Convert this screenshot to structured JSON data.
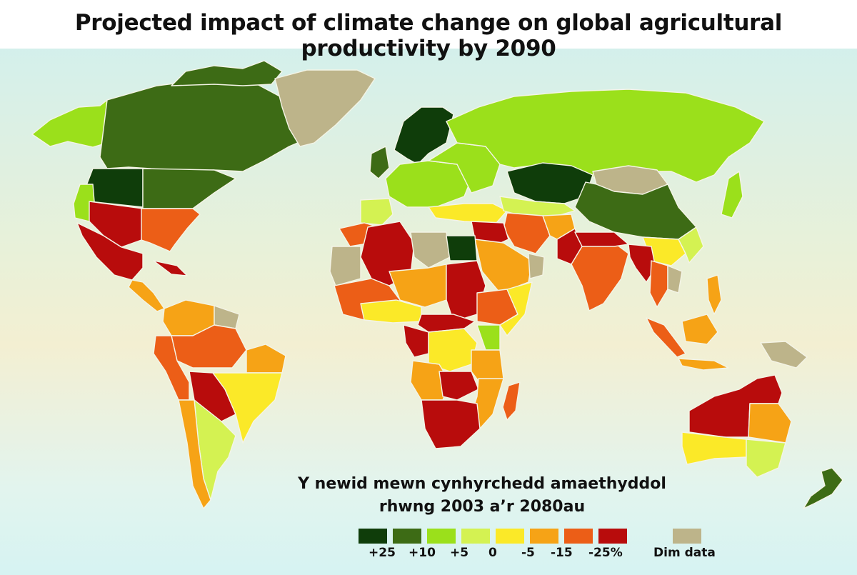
{
  "title": "Projected impact of climate change on global agricultural productivity by 2090",
  "legend": {
    "title_line1": "Y newid mewn cynhyrchedd amaethyddol",
    "title_line2": "rhwng 2003 a’r 2080au",
    "items": [
      {
        "label": "+25",
        "color": "#0f3d0a"
      },
      {
        "label": "+10",
        "color": "#3d6b15"
      },
      {
        "label": "+5",
        "color": "#9be01b"
      },
      {
        "label": "0",
        "color": "#d4f252"
      },
      {
        "label": "-5",
        "color": "#fbe928"
      },
      {
        "label": "-15",
        "color": "#f6a316"
      },
      {
        "label": "-25%",
        "color": "#ec5e17"
      },
      {
        "label": "",
        "color": "#b80c0c"
      },
      {
        "label": "Dim data",
        "color": "#bdb48a"
      }
    ]
  }
}
